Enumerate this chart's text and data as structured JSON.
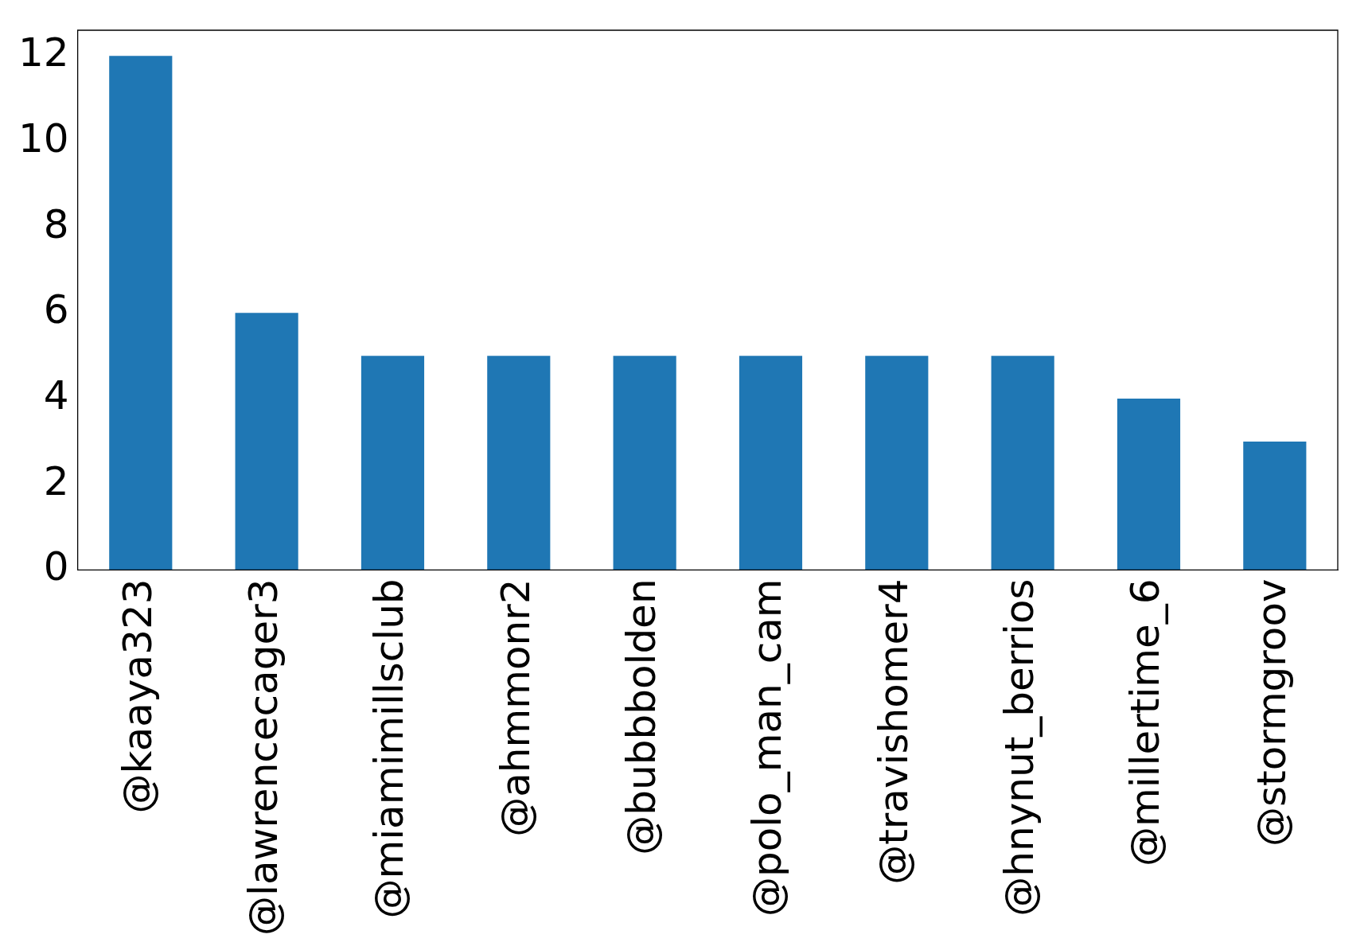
{
  "chart_data": {
    "type": "bar",
    "categories": [
      "@kaaya323",
      "@lawrencecager3",
      "@miamimillsclub",
      "@ahmmonr2",
      "@bubbbolden",
      "@polo_man_cam",
      "@travishomer4",
      "@hnynut_berrios",
      "@millertime_6",
      "@stormgroov"
    ],
    "values": [
      12,
      6,
      5,
      5,
      5,
      5,
      5,
      5,
      4,
      3
    ],
    "color": "#1f77b4",
    "ylim": [
      0,
      12.6
    ],
    "yticks": [
      0,
      2,
      4,
      6,
      8,
      10,
      12
    ],
    "grid": false,
    "legend": false
  }
}
